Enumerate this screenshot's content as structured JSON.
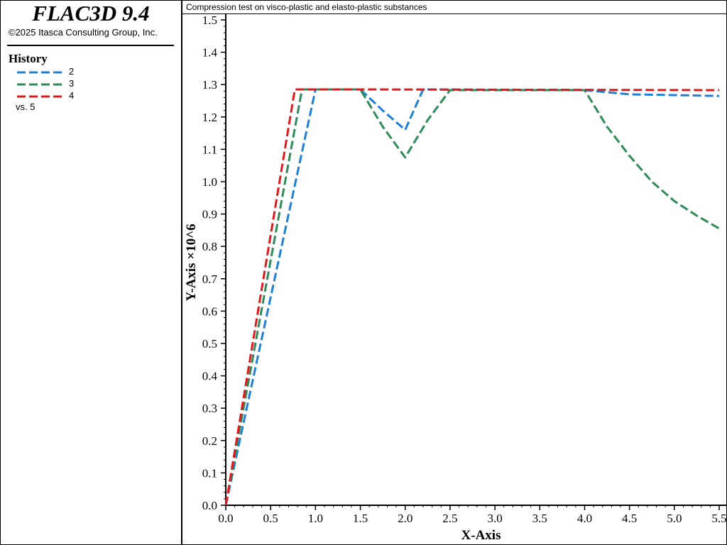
{
  "sidebar": {
    "app_title": "FLAC3D 9.4",
    "copyright": "©2025 Itasca Consulting Group, Inc.",
    "legend_title": "History",
    "legend": [
      {
        "label": "2",
        "color": "#1e7fd6"
      },
      {
        "label": "3",
        "color": "#2e8b57"
      },
      {
        "label": "4",
        "color": "#e0191c"
      }
    ],
    "vs_label": "vs. 5"
  },
  "chart_data": {
    "type": "line",
    "title": "Compression test on visco-plastic and elasto-plastic substances",
    "xlabel": "X-Axis",
    "ylabel": "Y-Axis ×10^6",
    "xlim": [
      0,
      5.5
    ],
    "ylim": [
      0,
      1.5
    ],
    "xticks": [
      "0.0",
      "0.5",
      "1.0",
      "1.5",
      "2.0",
      "2.5",
      "3.0",
      "3.5",
      "4.0",
      "4.5",
      "5.0",
      "5.5"
    ],
    "yticks": [
      "0.0",
      "0.1",
      "0.2",
      "0.3",
      "0.4",
      "0.5",
      "0.6",
      "0.7",
      "0.8",
      "0.9",
      "1.0",
      "1.1",
      "1.2",
      "1.3",
      "1.4",
      "1.5"
    ],
    "grid": false,
    "series": [
      {
        "name": "2",
        "color": "#1e7fd6",
        "x": [
          0,
          1.0,
          1.5,
          1.75,
          2.0,
          2.2,
          4.0,
          4.5,
          5.5
        ],
        "y": [
          0,
          1.285,
          1.285,
          1.22,
          1.16,
          1.285,
          1.283,
          1.27,
          1.265
        ]
      },
      {
        "name": "3",
        "color": "#2e8b57",
        "x": [
          0,
          0.85,
          1.5,
          1.75,
          2.0,
          2.25,
          2.5,
          4.0,
          4.25,
          4.5,
          4.75,
          5.0,
          5.25,
          5.5
        ],
        "y": [
          0,
          1.285,
          1.285,
          1.17,
          1.075,
          1.19,
          1.283,
          1.283,
          1.17,
          1.08,
          1.0,
          0.94,
          0.895,
          0.855
        ]
      },
      {
        "name": "4",
        "color": "#e0191c",
        "x": [
          0,
          0.77,
          1.5,
          5.5
        ],
        "y": [
          0,
          1.285,
          1.285,
          1.283
        ]
      }
    ]
  }
}
